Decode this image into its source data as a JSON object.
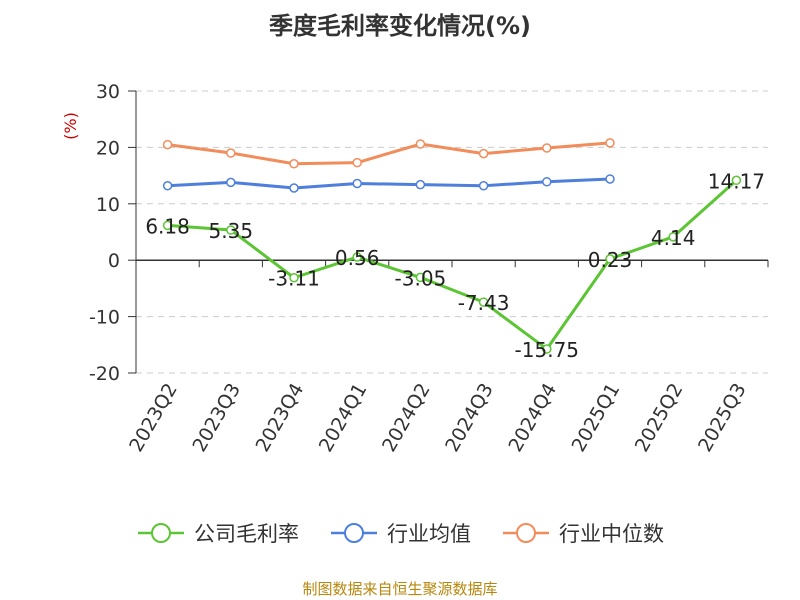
{
  "title": "季度毛利率变化情况(%)",
  "source": "制图数据来自恒生聚源数据库",
  "colors": {
    "company": "#5cc534",
    "industry_avg": "#4e7fdc",
    "industry_median": "#f28c5a",
    "unit": "#cc0000",
    "axis": "#333333",
    "grid": "#cccccc",
    "source": "#b8860b"
  },
  "chart_data": {
    "type": "line",
    "title": "季度毛利率变化情况(%)",
    "ylabel": "(%)",
    "xlabel": "",
    "ylim": [
      -20,
      30
    ],
    "yticks": [
      30,
      20,
      10,
      0,
      -10,
      -20
    ],
    "grid": true,
    "legend_position": "bottom",
    "categories": [
      "2023Q2",
      "2023Q3",
      "2023Q4",
      "2024Q1",
      "2024Q2",
      "2024Q3",
      "2024Q4",
      "2025Q1",
      "2025Q2",
      "2025Q3"
    ],
    "series": [
      {
        "name": "公司毛利率",
        "color": "#5cc534",
        "values": [
          6.18,
          5.35,
          -3.11,
          0.56,
          -3.05,
          -7.43,
          -15.75,
          0.23,
          4.14,
          14.17
        ],
        "labels": [
          "6.18",
          "5.35",
          "-3.11",
          "0.56",
          "-3.05",
          "-7.43",
          "-15.75",
          "0.23",
          "4.14",
          "14.17"
        ]
      },
      {
        "name": "行业均值",
        "color": "#4e7fdc",
        "values": [
          13.2,
          13.8,
          12.8,
          13.6,
          13.4,
          13.2,
          13.9,
          14.4,
          null,
          null
        ]
      },
      {
        "name": "行业中位数",
        "color": "#f28c5a",
        "values": [
          20.5,
          19.0,
          17.1,
          17.3,
          20.6,
          18.9,
          19.9,
          20.8,
          null,
          null
        ]
      }
    ]
  }
}
